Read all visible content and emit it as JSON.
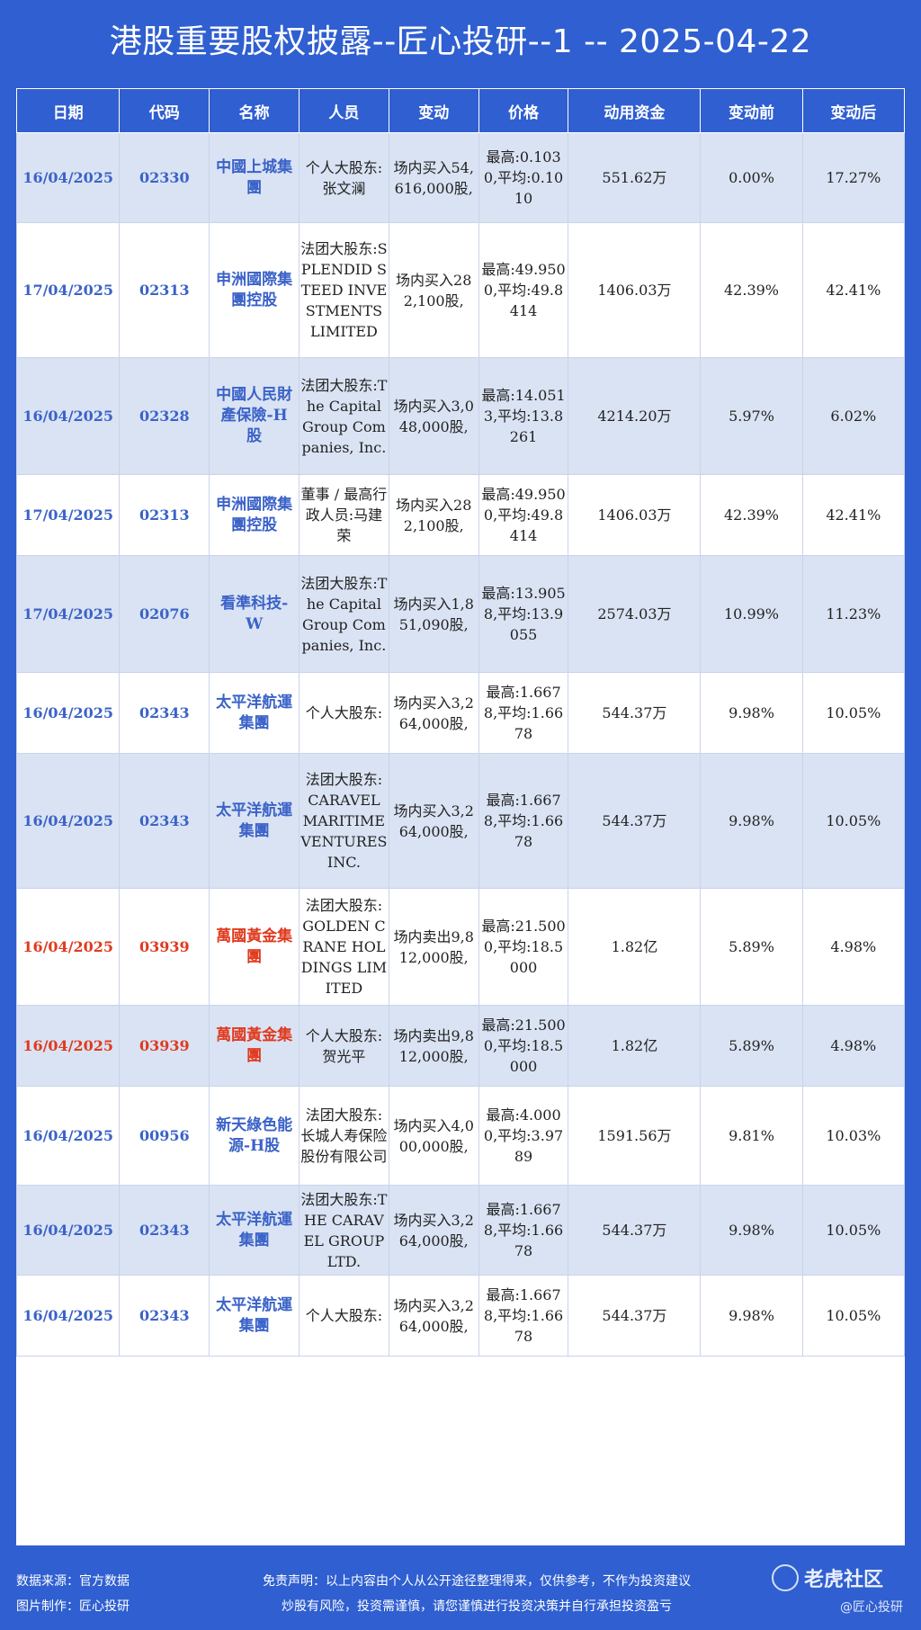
{
  "title": "港股重要股权披露--匠心投研--1 -- 2025-04-22",
  "table": {
    "headers": [
      "日期",
      "代码",
      "名称",
      "人员",
      "变动",
      "价格",
      "动用资金",
      "变动前",
      "变动后"
    ],
    "rows": [
      {
        "date": "16/04/2025",
        "code": "02330",
        "name": "中國上城集團",
        "person": "个人大股东:张文澜",
        "change": "场内买入54,616,000股,",
        "price": "最高:0.1030,平均:0.1010",
        "funds": "551.62万",
        "before": "0.00%",
        "after": "17.27%",
        "highlight": false
      },
      {
        "date": "17/04/2025",
        "code": "02313",
        "name": "申洲國際集團控股",
        "person": "法团大股东:SPLENDID STEED INVESTMENTS LIMITED",
        "change": "场内买入282,100股,",
        "price": "最高:49.9500,平均:49.8414",
        "funds": "1406.03万",
        "before": "42.39%",
        "after": "42.41%",
        "highlight": false
      },
      {
        "date": "16/04/2025",
        "code": "02328",
        "name": "中國人民財產保險-H股",
        "person": "法团大股东:The Capital Group Companies, Inc.",
        "change": "场内买入3,048,000股,",
        "price": "最高:14.0513,平均:13.8261",
        "funds": "4214.20万",
        "before": "5.97%",
        "after": "6.02%",
        "highlight": false
      },
      {
        "date": "17/04/2025",
        "code": "02313",
        "name": "申洲國際集團控股",
        "person": "董事 / 最高行政人员:马建荣",
        "change": "场内买入282,100股,",
        "price": "最高:49.9500,平均:49.8414",
        "funds": "1406.03万",
        "before": "42.39%",
        "after": "42.41%",
        "highlight": false
      },
      {
        "date": "17/04/2025",
        "code": "02076",
        "name": "看準科技-W",
        "person": "法团大股东:The Capital Group Companies, Inc.",
        "change": "场内买入1,851,090股,",
        "price": "最高:13.9058,平均:13.9055",
        "funds": "2574.03万",
        "before": "10.99%",
        "after": "11.23%",
        "highlight": false
      },
      {
        "date": "16/04/2025",
        "code": "02343",
        "name": "太平洋航運集團",
        "person": "个人大股东:",
        "change": "场内买入3,264,000股,",
        "price": "最高:1.6678,平均:1.6678",
        "funds": "544.37万",
        "before": "9.98%",
        "after": "10.05%",
        "highlight": false
      },
      {
        "date": "16/04/2025",
        "code": "02343",
        "name": "太平洋航運集團",
        "person": "法团大股东:CARAVEL MARITIME VENTURES INC.",
        "change": "场内买入3,264,000股,",
        "price": "最高:1.6678,平均:1.6678",
        "funds": "544.37万",
        "before": "9.98%",
        "after": "10.05%",
        "highlight": false
      },
      {
        "date": "16/04/2025",
        "code": "03939",
        "name": "萬國黃金集團",
        "person": "法团大股东:GOLDEN CRANE HOLDINGS LIMITED",
        "change": "场内卖出9,812,000股,",
        "price": "最高:21.5000,平均:18.5000",
        "funds": "1.82亿",
        "before": "5.89%",
        "after": "4.98%",
        "highlight": true
      },
      {
        "date": "16/04/2025",
        "code": "03939",
        "name": "萬國黃金集團",
        "person": "个人大股东:贺光平",
        "change": "场内卖出9,812,000股,",
        "price": "最高:21.5000,平均:18.5000",
        "funds": "1.82亿",
        "before": "5.89%",
        "after": "4.98%",
        "highlight": true
      },
      {
        "date": "16/04/2025",
        "code": "00956",
        "name": "新天綠色能源-H股",
        "person": "法团大股东:长城人寿保险股份有限公司",
        "change": "场内买入4,000,000股,",
        "price": "最高:4.0000,平均:3.9789",
        "funds": "1591.56万",
        "before": "9.81%",
        "after": "10.03%",
        "highlight": false
      },
      {
        "date": "16/04/2025",
        "code": "02343",
        "name": "太平洋航運集團",
        "person": "法团大股东:THE CARAVEL GROUP LTD.",
        "change": "场内买入3,264,000股,",
        "price": "最高:1.6678,平均:1.6678",
        "funds": "544.37万",
        "before": "9.98%",
        "after": "10.05%",
        "highlight": false
      },
      {
        "date": "16/04/2025",
        "code": "02343",
        "name": "太平洋航運集團",
        "person": "个人大股东:",
        "change": "场内买入3,264,000股,",
        "price": "最高:1.6678,平均:1.6678",
        "funds": "544.37万",
        "before": "9.98%",
        "after": "10.05%",
        "highlight": false
      }
    ]
  },
  "footer": {
    "source": "数据来源：官方数据",
    "maker": "图片制作：匠心投研",
    "disclaimer_1": "免责声明：以上内容由个人从公开途径整理得来，仅供参考，不作为投资建议",
    "disclaimer_2": "炒股有风险，投资需谨慎，请您谨慎进行投资决策并自行承担投资盈亏",
    "brand": "老虎社区",
    "handle": "@匠心投研"
  },
  "colors": {
    "accent": "#2f5fd0",
    "row_alt": "#dae3f3",
    "link_blue": "#3a62c8",
    "highlight_red": "#e03a1e"
  }
}
